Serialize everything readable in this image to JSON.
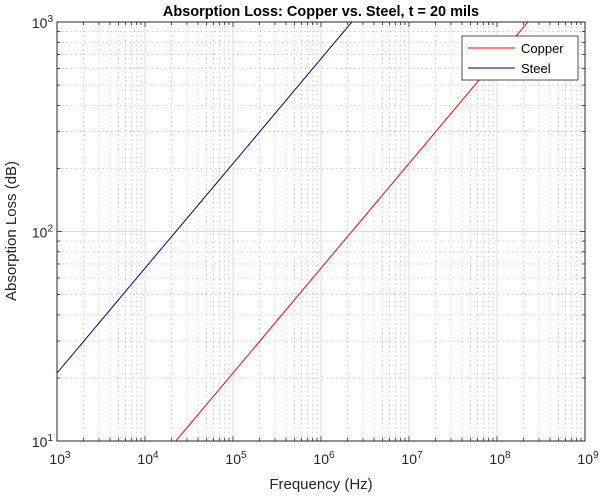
{
  "chart_data": {
    "type": "line",
    "title": "Absorption Loss: Copper vs. Steel, t = 20 mils",
    "xlabel": "Frequency (Hz)",
    "ylabel": "Absorption Loss (dB)",
    "xscale": "log",
    "yscale": "log",
    "xlim": [
      1000,
      1000000000
    ],
    "ylim": [
      10,
      1000
    ],
    "grid": "major solid, minor dotted",
    "legend_position": "top-right",
    "xticks": [
      {
        "base": "10",
        "exp": "3",
        "value": 1000
      },
      {
        "base": "10",
        "exp": "4",
        "value": 10000
      },
      {
        "base": "10",
        "exp": "5",
        "value": 100000
      },
      {
        "base": "10",
        "exp": "6",
        "value": 1000000
      },
      {
        "base": "10",
        "exp": "7",
        "value": 10000000
      },
      {
        "base": "10",
        "exp": "8",
        "value": 100000000
      },
      {
        "base": "10",
        "exp": "9",
        "value": 1000000000
      }
    ],
    "yticks": [
      {
        "base": "10",
        "exp": "1",
        "value": 10
      },
      {
        "base": "10",
        "exp": "2",
        "value": 100
      },
      {
        "base": "10",
        "exp": "3",
        "value": 1000
      }
    ],
    "series": [
      {
        "name": "Copper",
        "color": "#ff0000",
        "x": [
          22400,
          100000,
          1000000,
          10000000,
          100000000,
          224000000
        ],
        "y": [
          10,
          21.1,
          66.8,
          211,
          668,
          1000
        ]
      },
      {
        "name": "Steel",
        "color": "#00007f",
        "x": [
          1000,
          10000,
          100000,
          1000000,
          2240000
        ],
        "y": [
          21.1,
          66.8,
          211,
          668,
          1000
        ]
      }
    ]
  }
}
